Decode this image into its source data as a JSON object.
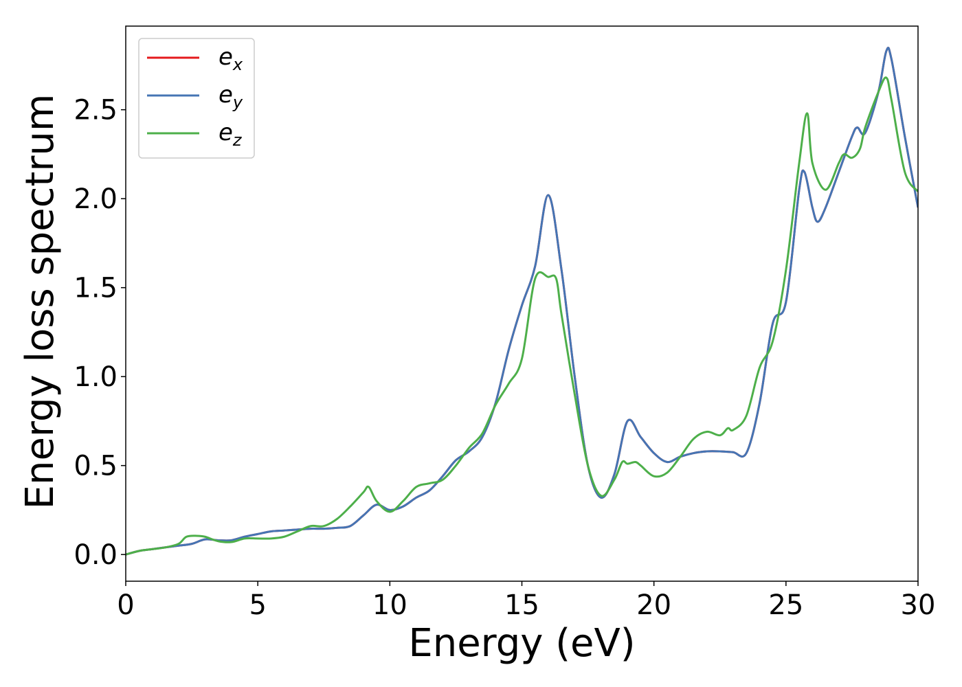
{
  "chart_data": {
    "type": "line",
    "title": "",
    "xlabel": "Energy (eV)",
    "ylabel": "Energy loss spectrum",
    "xlim": [
      0,
      30
    ],
    "ylim": [
      -0.15,
      2.97
    ],
    "xticks": [
      0,
      5,
      10,
      15,
      20,
      25,
      30
    ],
    "xtick_labels": [
      "0",
      "5",
      "10",
      "15",
      "20",
      "25",
      "30"
    ],
    "yticks": [
      0.0,
      0.5,
      1.0,
      1.5,
      2.0,
      2.5
    ],
    "ytick_labels": [
      "0.0",
      "0.5",
      "1.0",
      "1.5",
      "2.0",
      "2.5"
    ],
    "grid": false,
    "legend_position": "top-left",
    "series": [
      {
        "name": "e",
        "subscript": "x",
        "color": "#e41a1c",
        "x": [
          0,
          0.5,
          1,
          1.5,
          2,
          2.5,
          3,
          3.5,
          4,
          4.5,
          5,
          5.5,
          6,
          6.5,
          7,
          7.5,
          8,
          8.5,
          9,
          9.5,
          10,
          10.5,
          11,
          11.5,
          12,
          12.5,
          13,
          13.5,
          14,
          14.5,
          15,
          15.5,
          16,
          16.5,
          17,
          17.5,
          18,
          18.5,
          19,
          19.5,
          20,
          20.5,
          21,
          21.5,
          22,
          22.5,
          23,
          23.5,
          24,
          24.5,
          25,
          25.5,
          25.7,
          26,
          26.2,
          26.5,
          27,
          27.5,
          27.7,
          28,
          28.5,
          28.8,
          29,
          29.5,
          30
        ],
        "y": [
          0.0,
          0.02,
          0.03,
          0.04,
          0.05,
          0.06,
          0.085,
          0.08,
          0.08,
          0.1,
          0.115,
          0.13,
          0.135,
          0.14,
          0.145,
          0.145,
          0.15,
          0.16,
          0.22,
          0.28,
          0.25,
          0.27,
          0.32,
          0.36,
          0.44,
          0.53,
          0.58,
          0.66,
          0.85,
          1.15,
          1.4,
          1.62,
          2.02,
          1.6,
          1.0,
          0.5,
          0.32,
          0.45,
          0.75,
          0.66,
          0.57,
          0.52,
          0.55,
          0.57,
          0.58,
          0.58,
          0.575,
          0.57,
          0.85,
          1.3,
          1.42,
          2.05,
          2.15,
          1.95,
          1.87,
          1.95,
          2.15,
          2.35,
          2.4,
          2.37,
          2.6,
          2.83,
          2.78,
          2.35,
          1.95
        ]
      },
      {
        "name": "e",
        "subscript": "y",
        "color": "#4575b4",
        "x": [
          0,
          0.5,
          1,
          1.5,
          2,
          2.5,
          3,
          3.5,
          4,
          4.5,
          5,
          5.5,
          6,
          6.5,
          7,
          7.5,
          8,
          8.5,
          9,
          9.5,
          10,
          10.5,
          11,
          11.5,
          12,
          12.5,
          13,
          13.5,
          14,
          14.5,
          15,
          15.5,
          16,
          16.5,
          17,
          17.5,
          18,
          18.5,
          19,
          19.5,
          20,
          20.5,
          21,
          21.5,
          22,
          22.5,
          23,
          23.5,
          24,
          24.5,
          25,
          25.5,
          25.7,
          26,
          26.2,
          26.5,
          27,
          27.5,
          27.7,
          28,
          28.5,
          28.8,
          29,
          29.5,
          30
        ],
        "y": [
          0.0,
          0.02,
          0.03,
          0.04,
          0.05,
          0.06,
          0.085,
          0.08,
          0.08,
          0.1,
          0.115,
          0.13,
          0.135,
          0.14,
          0.145,
          0.145,
          0.15,
          0.16,
          0.22,
          0.28,
          0.25,
          0.27,
          0.32,
          0.36,
          0.44,
          0.53,
          0.58,
          0.66,
          0.85,
          1.15,
          1.4,
          1.62,
          2.02,
          1.6,
          1.0,
          0.5,
          0.32,
          0.45,
          0.75,
          0.66,
          0.57,
          0.52,
          0.55,
          0.57,
          0.58,
          0.58,
          0.575,
          0.57,
          0.85,
          1.3,
          1.42,
          2.05,
          2.15,
          1.95,
          1.87,
          1.95,
          2.15,
          2.35,
          2.4,
          2.37,
          2.6,
          2.83,
          2.78,
          2.35,
          1.95
        ]
      },
      {
        "name": "e",
        "subscript": "z",
        "color": "#4daf4a",
        "x": [
          0,
          0.5,
          1,
          1.5,
          2,
          2.3,
          2.7,
          3,
          3.5,
          4,
          4.5,
          5,
          5.5,
          6,
          6.5,
          7,
          7.5,
          8,
          8.5,
          9,
          9.2,
          9.5,
          10,
          10.5,
          11,
          11.5,
          12,
          12.5,
          13,
          13.5,
          14,
          14.5,
          15,
          15.5,
          16,
          16.3,
          16.5,
          17,
          17.5,
          18,
          18.5,
          18.8,
          19,
          19.3,
          19.5,
          20,
          20.5,
          21,
          21.5,
          22,
          22.5,
          22.8,
          23,
          23.5,
          24,
          24.5,
          25,
          25.5,
          25.8,
          26,
          26.5,
          27,
          27.2,
          27.5,
          27.8,
          28,
          28.5,
          28.8,
          29,
          29.5,
          30
        ],
        "y": [
          0.0,
          0.02,
          0.03,
          0.04,
          0.06,
          0.1,
          0.105,
          0.1,
          0.075,
          0.07,
          0.09,
          0.09,
          0.09,
          0.1,
          0.13,
          0.16,
          0.16,
          0.2,
          0.27,
          0.35,
          0.38,
          0.3,
          0.24,
          0.3,
          0.38,
          0.4,
          0.42,
          0.5,
          0.6,
          0.68,
          0.84,
          0.96,
          1.1,
          1.55,
          1.56,
          1.55,
          1.35,
          0.9,
          0.5,
          0.33,
          0.42,
          0.52,
          0.51,
          0.52,
          0.5,
          0.44,
          0.46,
          0.55,
          0.65,
          0.69,
          0.67,
          0.71,
          0.7,
          0.78,
          1.05,
          1.2,
          1.6,
          2.2,
          2.48,
          2.2,
          2.05,
          2.2,
          2.25,
          2.23,
          2.28,
          2.4,
          2.6,
          2.68,
          2.55,
          2.15,
          2.04
        ]
      }
    ]
  }
}
